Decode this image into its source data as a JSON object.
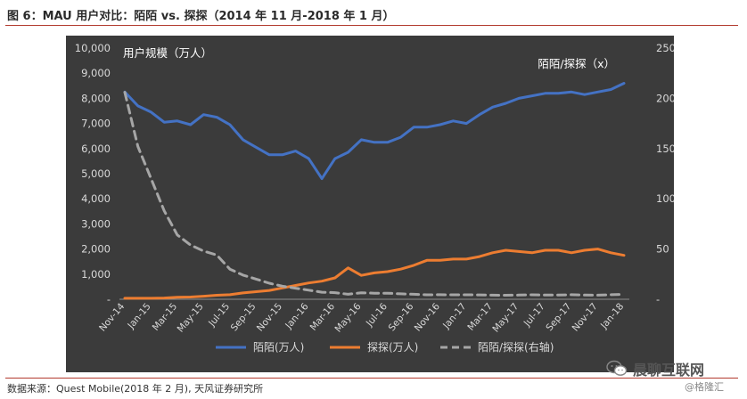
{
  "figure": {
    "title": "图 6：MAU 用户对比：陌陌 vs. 探探（2014 年 11 月-2018 年 1 月）",
    "source": "数据来源：Quest Mobile(2018 年 2 月), 天风证券研究所"
  },
  "watermark": {
    "text": "晨聊互联网",
    "sub": "@格隆汇",
    "icon": "wechat-icon"
  },
  "colors": {
    "background": "#3b3b3b",
    "momo": "#4472c4",
    "tantan": "#ed7d31",
    "ratio": "#a6a6a6",
    "axis_text": "#d9d9d9"
  },
  "chart_data": {
    "type": "line",
    "left_axis_label": "用户规模（万人）",
    "right_axis_label": "陌陌/探探（x）",
    "ylim": [
      0,
      10000
    ],
    "y2lim": [
      0,
      250
    ],
    "y_ticks": [
      "-",
      "1,000",
      "2,000",
      "3,000",
      "4,000",
      "5,000",
      "6,000",
      "7,000",
      "8,000",
      "9,000",
      "10,000"
    ],
    "y2_ticks": [
      "-",
      "50",
      "100",
      "150",
      "200",
      "250"
    ],
    "x_tick_labels": [
      "Nov-14",
      "Jan-15",
      "Mar-15",
      "May-15",
      "Jul-15",
      "Sep-15",
      "Nov-15",
      "Jan-16",
      "Mar-16",
      "May-16",
      "Jul-16",
      "Sep-16",
      "Nov-16",
      "Jan-17",
      "Mar-17",
      "May-17",
      "Jul-17",
      "Sep-17",
      "Nov-17",
      "Jan-18"
    ],
    "x": [
      "Nov-14",
      "Dec-14",
      "Jan-15",
      "Feb-15",
      "Mar-15",
      "Apr-15",
      "May-15",
      "Jun-15",
      "Jul-15",
      "Aug-15",
      "Sep-15",
      "Oct-15",
      "Nov-15",
      "Dec-15",
      "Jan-16",
      "Feb-16",
      "Mar-16",
      "Apr-16",
      "May-16",
      "Jun-16",
      "Jul-16",
      "Aug-16",
      "Sep-16",
      "Oct-16",
      "Nov-16",
      "Dec-16",
      "Jan-17",
      "Feb-17",
      "Mar-17",
      "Apr-17",
      "May-17",
      "Jun-17",
      "Jul-17",
      "Aug-17",
      "Sep-17",
      "Oct-17",
      "Nov-17",
      "Dec-17",
      "Jan-18"
    ],
    "series": [
      {
        "name": "陌陌(万人)",
        "axis": "left",
        "style": "solid",
        "values": [
          8250,
          7700,
          7450,
          7050,
          7100,
          6950,
          7350,
          7250,
          6950,
          6350,
          6050,
          5750,
          5750,
          5900,
          5600,
          4800,
          5600,
          5850,
          6350,
          6250,
          6250,
          6450,
          6850,
          6850,
          6950,
          7100,
          7000,
          7350,
          7650,
          7800,
          8000,
          8100,
          8200,
          8200,
          8250,
          8150,
          8250,
          8350,
          8600
        ]
      },
      {
        "name": "探探(万人)",
        "axis": "left",
        "style": "solid",
        "values": [
          40,
          40,
          40,
          50,
          80,
          90,
          120,
          160,
          180,
          250,
          300,
          350,
          450,
          550,
          650,
          720,
          850,
          1250,
          950,
          1050,
          1100,
          1200,
          1350,
          1550,
          1550,
          1600,
          1600,
          1700,
          1850,
          1950,
          1900,
          1850,
          1950,
          1950,
          1850,
          1950,
          2000,
          1850,
          1750
        ]
      },
      {
        "name": "陌陌/探探(右轴)",
        "axis": "right",
        "style": "dashed",
        "values": [
          206,
          152,
          120,
          88,
          64,
          54,
          48,
          44,
          30,
          24,
          20,
          16,
          13,
          11,
          9,
          7,
          6.6,
          5,
          6.5,
          6,
          6,
          5.4,
          5,
          4.4,
          4.5,
          4.4,
          4.4,
          4.3,
          4.1,
          4,
          4.2,
          4.4,
          4.2,
          4.2,
          4.5,
          4.2,
          4.1,
          4.5,
          4.9
        ]
      }
    ],
    "legend_position": "bottom",
    "grid": false
  }
}
